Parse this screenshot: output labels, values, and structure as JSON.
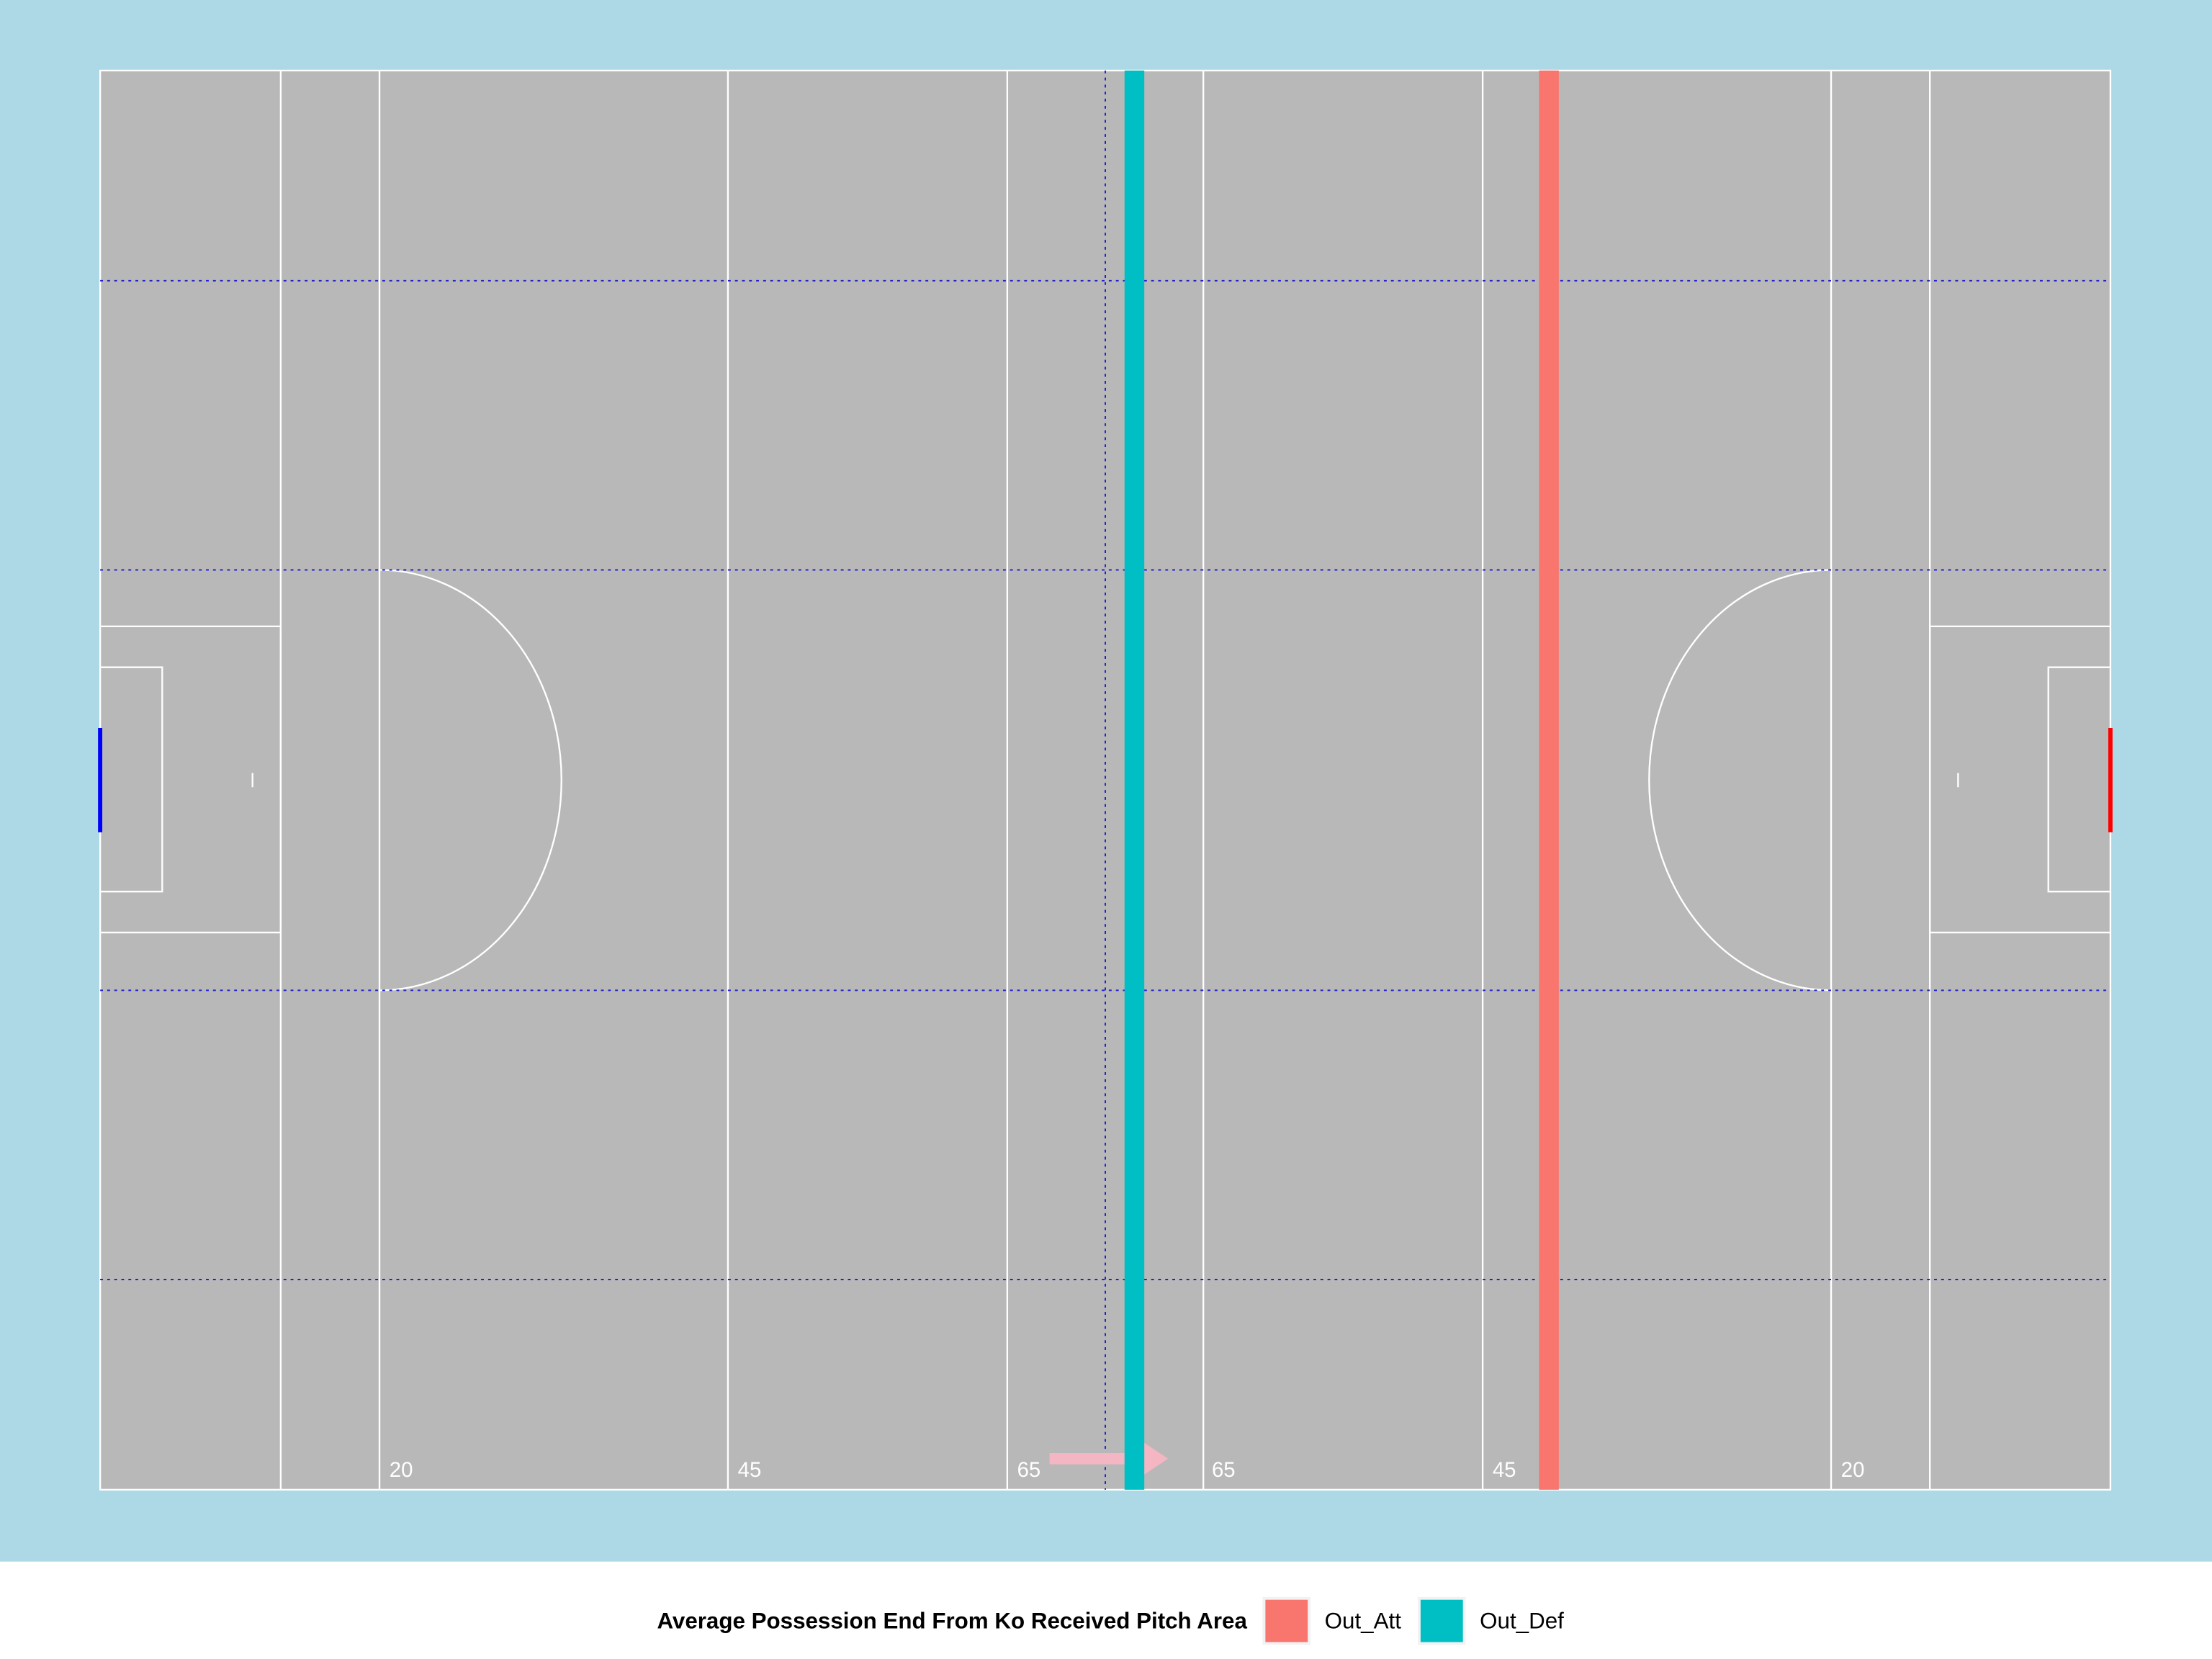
{
  "chart_data": {
    "type": "vline",
    "legend_title": "Average Possession End From Ko Received Pitch Area",
    "pitch_labels": [
      "20",
      "45",
      "65",
      "65",
      "45",
      "20"
    ],
    "xlim": [
      0,
      145
    ],
    "series": [
      {
        "name": "Out_Att",
        "color": "#F8766D",
        "values": [
          104.5
        ]
      },
      {
        "name": "Out_Def",
        "color": "#00BFC4",
        "values": [
          74.6
        ]
      }
    ],
    "legend_position": "bottom"
  }
}
